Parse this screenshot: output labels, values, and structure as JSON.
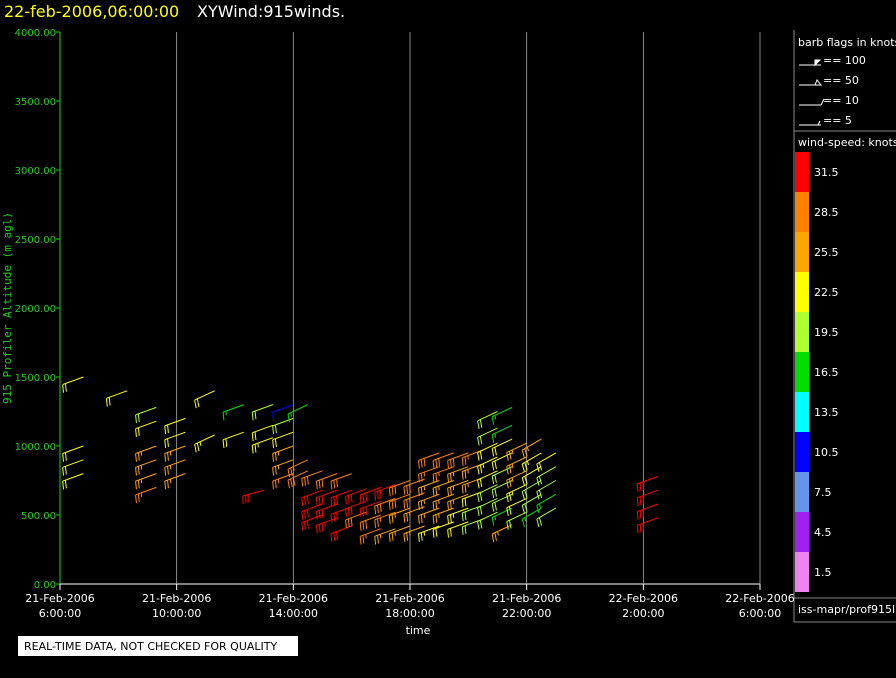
{
  "chart_data": {
    "type": "barb",
    "title": "22-feb-2006,06:00:00",
    "subtitle": "XYWind:915winds.",
    "y_label": "915 Profiler Altitude (m agl)",
    "x_label": "time",
    "footer": "REAL-TIME DATA, NOT CHECKED FOR QUALITY",
    "source": "iss-mapr/prof915l",
    "grid": true,
    "ylim": [
      0,
      4000
    ],
    "yticks": [
      {
        "value": 0,
        "label": "0.00"
      },
      {
        "value": 500,
        "label": "500.00"
      },
      {
        "value": 1000,
        "label": "1000.00"
      },
      {
        "value": 1500,
        "label": "1500.00"
      },
      {
        "value": 2000,
        "label": "2000.00"
      },
      {
        "value": 2500,
        "label": "2500.00"
      },
      {
        "value": 3000,
        "label": "3000.00"
      },
      {
        "value": 3500,
        "label": "3500.00"
      },
      {
        "value": 4000,
        "label": "4000.00"
      }
    ],
    "xlim": [
      "2006-02-21T06:00",
      "2006-02-22T06:00"
    ],
    "xticks": [
      {
        "value": "2006-02-21T06:00",
        "label": [
          "21-Feb-2006",
          "6:00:00"
        ]
      },
      {
        "value": "2006-02-21T10:00",
        "label": [
          "21-Feb-2006",
          "10:00:00"
        ]
      },
      {
        "value": "2006-02-21T14:00",
        "label": [
          "21-Feb-2006",
          "14:00:00"
        ]
      },
      {
        "value": "2006-02-21T18:00",
        "label": [
          "21-Feb-2006",
          "18:00:00"
        ]
      },
      {
        "value": "2006-02-21T22:00",
        "label": [
          "21-Feb-2006",
          "22:00:00"
        ]
      },
      {
        "value": "2006-02-22T02:00",
        "label": [
          "22-Feb-2006",
          "2:00:00"
        ]
      },
      {
        "value": "2006-02-22T06:00",
        "label": [
          "22-Feb-2006",
          "6:00:00"
        ]
      }
    ],
    "barb_legend": {
      "title": "barb flags in knots",
      "items": [
        "== 100",
        "== 50",
        "== 10",
        "== 5"
      ]
    },
    "colorbar": {
      "title": "wind-speed: knots",
      "labels": [
        31.5,
        28.5,
        25.5,
        22.5,
        19.5,
        16.5,
        13.5,
        10.5,
        7.5,
        4.5,
        1.5
      ],
      "colors": [
        "#ff0000",
        "#ff7f00",
        "#ffa500",
        "#ffff00",
        "#adff2f",
        "#00e000",
        "#00ffff",
        "#0000ff",
        "#6495ed",
        "#a020f0",
        "#ee82ee"
      ]
    },
    "profiles": [
      {
        "time": "2006-02-21T06:48",
        "direction": 250,
        "y": [
          1500,
          1000,
          900,
          800
        ],
        "speed": [
          21,
          22,
          22,
          22
        ]
      },
      {
        "time": "2006-02-21T08:18",
        "direction": 250,
        "y": [
          1400
        ],
        "speed": [
          21
        ]
      },
      {
        "time": "2006-02-21T09:18",
        "direction": 250,
        "y": [
          1280,
          1180,
          1000,
          900,
          800,
          700
        ],
        "speed": [
          20,
          22,
          25,
          26,
          26,
          27
        ]
      },
      {
        "time": "2006-02-21T10:18",
        "direction": 250,
        "y": [
          1200,
          1100,
          1000,
          900,
          800
        ],
        "speed": [
          22,
          22,
          25,
          26,
          26
        ]
      },
      {
        "time": "2006-02-21T11:18",
        "direction": 245,
        "y": [
          1400,
          1080
        ],
        "speed": [
          22,
          23
        ]
      },
      {
        "time": "2006-02-21T12:18",
        "direction": 250,
        "y": [
          1300,
          1100
        ],
        "speed": [
          17,
          22
        ]
      },
      {
        "time": "2006-02-21T13:00",
        "direction": 255,
        "y": [
          680
        ],
        "speed": [
          32
        ]
      },
      {
        "time": "2006-02-21T13:18",
        "direction": 250,
        "y": [
          1300,
          1150,
          1060
        ],
        "speed": [
          18,
          22,
          23
        ]
      },
      {
        "time": "2006-02-21T14:00",
        "direction": 250,
        "y": [
          1300,
          1200,
          1100,
          1000,
          900,
          800
        ],
        "speed": [
          10,
          18,
          22,
          24,
          26,
          27
        ]
      },
      {
        "time": "2006-02-21T14:30",
        "direction": 245,
        "y": [
          1300,
          900,
          820
        ],
        "speed": [
          17,
          27,
          28
        ]
      },
      {
        "time": "2006-02-21T15:00",
        "direction": 250,
        "y": [
          820,
          680,
          580,
          500
        ],
        "speed": [
          29,
          30,
          31,
          32
        ]
      },
      {
        "time": "2006-02-21T15:30",
        "direction": 250,
        "y": [
          800,
          680,
          580,
          480
        ],
        "speed": [
          29,
          31,
          32,
          33
        ]
      },
      {
        "time": "2006-02-21T16:00",
        "direction": 250,
        "y": [
          800,
          680,
          560,
          420
        ],
        "speed": [
          29,
          30,
          31,
          30
        ]
      },
      {
        "time": "2006-02-21T16:30",
        "direction": 250,
        "y": [
          690,
          600,
          520
        ],
        "speed": [
          32,
          31,
          29
        ]
      },
      {
        "time": "2006-02-21T17:00",
        "direction": 250,
        "y": [
          700,
          600,
          500,
          400
        ],
        "speed": [
          31,
          30,
          28,
          27
        ]
      },
      {
        "time": "2006-02-21T17:30",
        "direction": 250,
        "y": [
          720,
          620,
          520,
          400
        ],
        "speed": [
          30,
          29,
          27,
          26
        ]
      },
      {
        "time": "2006-02-21T18:00",
        "direction": 250,
        "y": [
          750,
          650,
          550,
          420
        ],
        "speed": [
          29,
          28,
          26,
          25
        ]
      },
      {
        "time": "2006-02-21T18:30",
        "direction": 250,
        "y": [
          760,
          660,
          560,
          420
        ],
        "speed": [
          28,
          27,
          26,
          24
        ]
      },
      {
        "time": "2006-02-21T19:00",
        "direction": 250,
        "y": [
          950,
          850,
          750,
          650,
          550,
          420
        ],
        "speed": [
          28,
          27,
          26,
          25,
          24,
          23
        ]
      },
      {
        "time": "2006-02-21T19:30",
        "direction": 250,
        "y": [
          950,
          850,
          750,
          650,
          550,
          450
        ],
        "speed": [
          28,
          27,
          26,
          25,
          24,
          22
        ]
      },
      {
        "time": "2006-02-21T20:00",
        "direction": 250,
        "y": [
          950,
          850,
          750,
          650,
          550,
          450
        ],
        "speed": [
          28,
          26,
          25,
          24,
          23,
          21
        ]
      },
      {
        "time": "2006-02-21T20:30",
        "direction": 250,
        "y": [
          970,
          870,
          770,
          670,
          570,
          470
        ],
        "speed": [
          27,
          26,
          24,
          22,
          20,
          19
        ]
      },
      {
        "time": "2006-02-21T21:00",
        "direction": 245,
        "y": [
          1250,
          1130,
          1020,
          920,
          820,
          720,
          620,
          520
        ],
        "speed": [
          18,
          20,
          22,
          23,
          22,
          20,
          19,
          18
        ]
      },
      {
        "time": "2006-02-21T21:30",
        "direction": 245,
        "y": [
          1280,
          1150,
          1050,
          950,
          850,
          750,
          650,
          550,
          430
        ],
        "speed": [
          15,
          17,
          21,
          22,
          20,
          19,
          18,
          17,
          26
        ]
      },
      {
        "time": "2006-02-21T22:00",
        "direction": 245,
        "y": [
          1020,
          920,
          820,
          720,
          620,
          520
        ],
        "speed": [
          24,
          25,
          24,
          23,
          22,
          20
        ]
      },
      {
        "time": "2006-02-21T22:30",
        "direction": 240,
        "y": [
          1050,
          950,
          850,
          750,
          650,
          550
        ],
        "speed": [
          26,
          23,
          22,
          19,
          18,
          17
        ]
      },
      {
        "time": "2006-02-21T23:00",
        "direction": 240,
        "y": [
          950,
          850,
          750,
          650,
          550
        ],
        "speed": [
          21,
          20,
          18,
          17,
          19
        ]
      },
      {
        "time": "2006-02-22T02:30",
        "direction": 250,
        "y": [
          780,
          680,
          580,
          480
        ],
        "speed": [
          32,
          31,
          30,
          31
        ]
      }
    ]
  }
}
